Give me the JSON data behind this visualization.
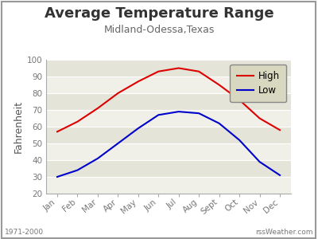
{
  "title": "Average Temperature Range",
  "subtitle": "Midland-Odessa,Texas",
  "ylabel": "Fahrenheit",
  "months": [
    "Jan",
    "Feb",
    "Mar",
    "Apr",
    "May",
    "Jun",
    "Jul",
    "Aug",
    "Sept",
    "Oct",
    "Nov",
    "Dec"
  ],
  "high": [
    57,
    63,
    71,
    80,
    87,
    93,
    95,
    93,
    85,
    76,
    65,
    58
  ],
  "low": [
    30,
    34,
    41,
    50,
    59,
    67,
    69,
    68,
    62,
    52,
    39,
    31
  ],
  "high_color": "#dd0000",
  "low_color": "#0000cc",
  "ylim": [
    20,
    100
  ],
  "yticks": [
    20,
    30,
    40,
    50,
    60,
    70,
    80,
    90,
    100
  ],
  "plot_bg_light": "#f0f0e8",
  "plot_bg_dark": "#e4e4d8",
  "outer_bg": "#ffffff",
  "border_color": "#aaaaaa",
  "legend_bg": "#d8d8c0",
  "footer_left": "1971-2000",
  "footer_right": "rssWeather.com",
  "line_width": 1.5,
  "title_fontsize": 13,
  "subtitle_fontsize": 9,
  "axis_fontsize": 7.5,
  "ylabel_fontsize": 9,
  "legend_fontsize": 8.5,
  "footer_fontsize": 6.5
}
